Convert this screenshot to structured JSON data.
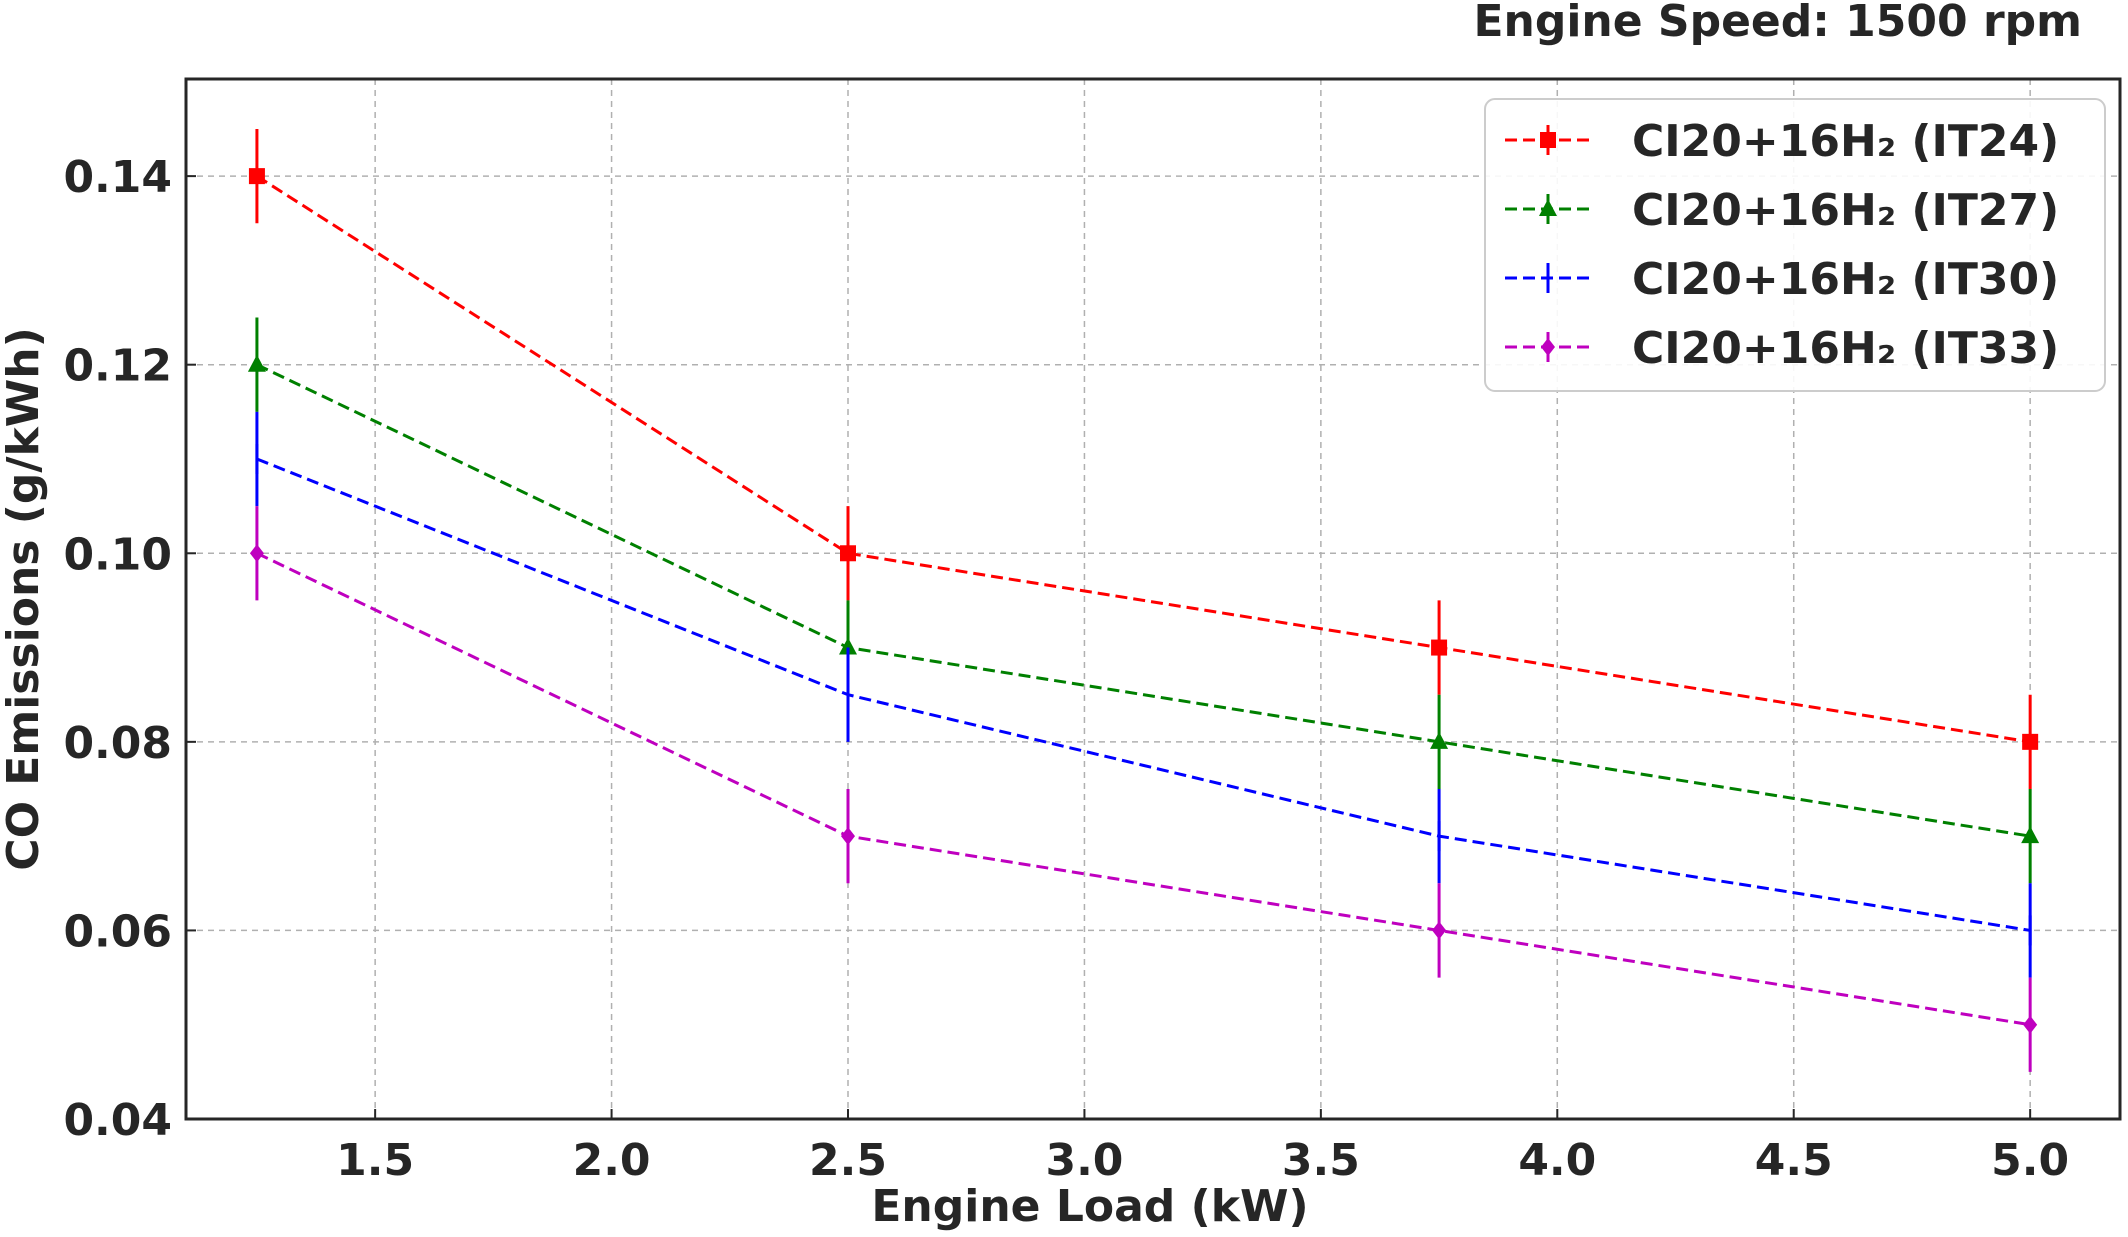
{
  "chart_data": {
    "type": "line",
    "title": "Engine Speed: 1500 rpm",
    "xlabel": "Engine Load (kW)",
    "ylabel": "CO Emissions (g/kWh)",
    "xlim": [
      1.1,
      5.19
    ],
    "ylim": [
      0.04,
      0.1503
    ],
    "xticks": [
      1.5,
      2.0,
      2.5,
      3.0,
      3.5,
      4.0,
      4.5,
      5.0
    ],
    "xtick_labels": [
      "1.5",
      "2.0",
      "2.5",
      "3.0",
      "3.5",
      "4.0",
      "4.5",
      "5.0"
    ],
    "yticks": [
      0.04,
      0.06,
      0.08,
      0.1,
      0.12,
      0.14
    ],
    "ytick_labels": [
      "0.04",
      "0.06",
      "0.08",
      "0.10",
      "0.12",
      "0.14"
    ],
    "grid": true,
    "legend_position": "top-right",
    "x": [
      1.25,
      2.5,
      3.75,
      5.0
    ],
    "series": [
      {
        "name": "CI20+16H₂ (IT24)",
        "color": "#ff0000",
        "marker": "square",
        "values": [
          0.14,
          0.1,
          0.09,
          0.08
        ],
        "error": 0.005
      },
      {
        "name": "CI20+16H₂ (IT27)",
        "color": "#008000",
        "marker": "triangle",
        "values": [
          0.12,
          0.09,
          0.08,
          0.07
        ],
        "error": 0.005
      },
      {
        "name": "CI20+16H₂ (IT30)",
        "color": "#0000ff",
        "marker": "vline",
        "values": [
          0.11,
          0.085,
          0.07,
          0.06
        ],
        "error": 0.005
      },
      {
        "name": "CI20+16H₂ (IT33)",
        "color": "#bf00bf",
        "marker": "diamond",
        "values": [
          0.1,
          0.07,
          0.06,
          0.05
        ],
        "error": 0.005
      }
    ]
  }
}
